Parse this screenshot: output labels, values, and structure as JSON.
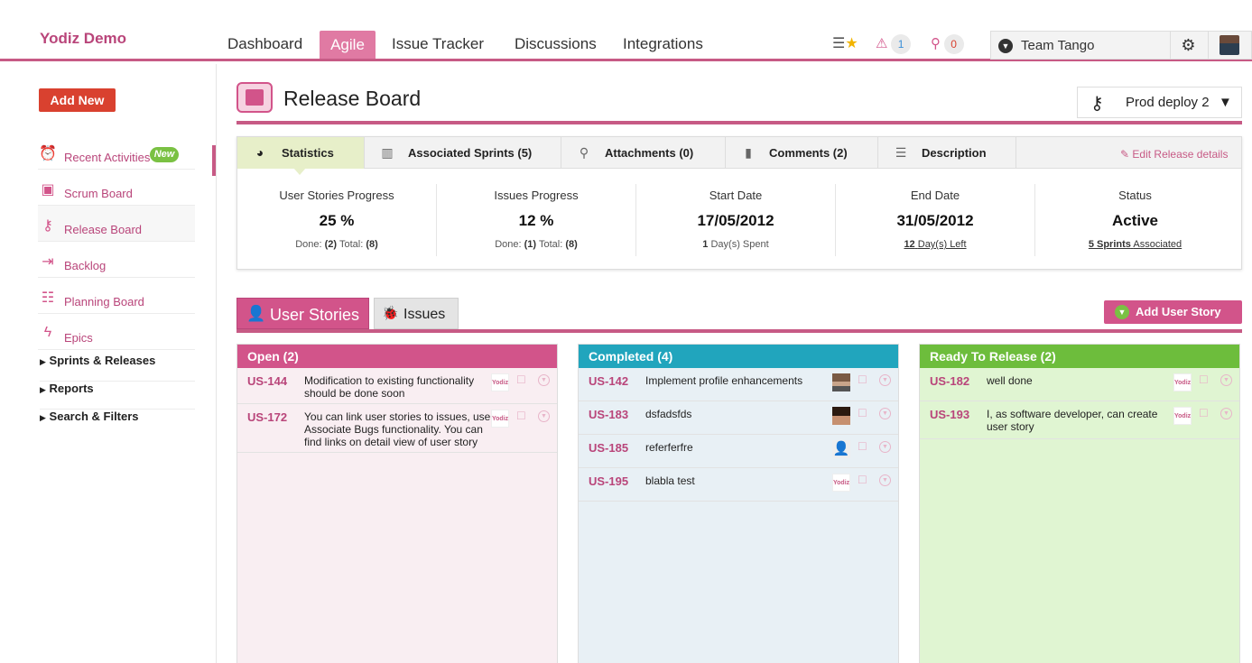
{
  "app": {
    "brand": "Yodiz Demo"
  },
  "nav": {
    "dashboard": "Dashboard",
    "agile": "Agile",
    "issue_tracker": "Issue Tracker",
    "discussions": "Discussions",
    "integrations": "Integrations"
  },
  "toolbar": {
    "alerts_count": "1",
    "pins_count": "0",
    "team": "Team Tango"
  },
  "sidebar": {
    "add_new": "Add New",
    "items": [
      {
        "label": "Recent Activities",
        "icon": "alarm-clock-icon"
      },
      {
        "label": "Scrum Board",
        "icon": "board-icon"
      },
      {
        "label": "Release Board",
        "icon": "key-icon"
      },
      {
        "label": "Backlog",
        "icon": "backlog-icon"
      },
      {
        "label": "Planning Board",
        "icon": "planning-icon"
      },
      {
        "label": "Epics",
        "icon": "epic-icon"
      }
    ],
    "new_badge": "New",
    "sections": [
      "Sprints & Releases",
      "Reports",
      "Search & Filters"
    ]
  },
  "page": {
    "title": "Release Board",
    "release": "Prod deploy 2"
  },
  "tabs": {
    "statistics": "Statistics",
    "sprints": "Associated Sprints (5)",
    "attachments": "Attachments (0)",
    "comments": "Comments (2)",
    "description": "Description",
    "edit": "Edit Release details"
  },
  "stats": {
    "us_progress": {
      "title": "User Stories Progress",
      "value": "25 %",
      "done_label": "Done:",
      "done": "(2)",
      "total_label": "Total:",
      "total": "(8)"
    },
    "issues_progress": {
      "title": "Issues Progress",
      "value": "12 %",
      "done_label": "Done:",
      "done": "(1)",
      "total_label": "Total:",
      "total": "(8)"
    },
    "start_date": {
      "title": "Start Date",
      "value": "17/05/2012",
      "count": "1",
      "sub": "Day(s) Spent"
    },
    "end_date": {
      "title": "End Date",
      "value": "31/05/2012",
      "count": "12",
      "sub": "Day(s) Left"
    },
    "status": {
      "title": "Status",
      "value": "Active",
      "count": "5 Sprints",
      "sub": "Associated"
    }
  },
  "board": {
    "tab_user_stories": "User Stories",
    "tab_issues": "Issues",
    "add_user_story": "Add User Story",
    "logo_text": "Yodiz",
    "columns": [
      {
        "title": "Open (2)",
        "color": "#d2548a",
        "bg": "#f9eef2",
        "cards": [
          {
            "id": "US-144",
            "text": "Modification to existing functionality should be done soon"
          },
          {
            "id": "US-172",
            "text": "You can link user stories to issues, use Associate Bugs functionality. You can find links on detail view of user story"
          }
        ]
      },
      {
        "title": "Completed (4)",
        "color": "#21a5bd",
        "bg": "#e8f0f5",
        "cards": [
          {
            "id": "US-142",
            "text": "Implement profile enhancements"
          },
          {
            "id": "US-183",
            "text": "dsfadsfds"
          },
          {
            "id": "US-185",
            "text": "referferfre"
          },
          {
            "id": "US-195",
            "text": "blabla test"
          }
        ]
      },
      {
        "title": "Ready To Release (2)",
        "color": "#6dbd3c",
        "bg": "#e0f5d2",
        "cards": [
          {
            "id": "US-182",
            "text": "well done"
          },
          {
            "id": "US-193",
            "text": "I, as software developer, can create user story"
          }
        ]
      }
    ]
  }
}
